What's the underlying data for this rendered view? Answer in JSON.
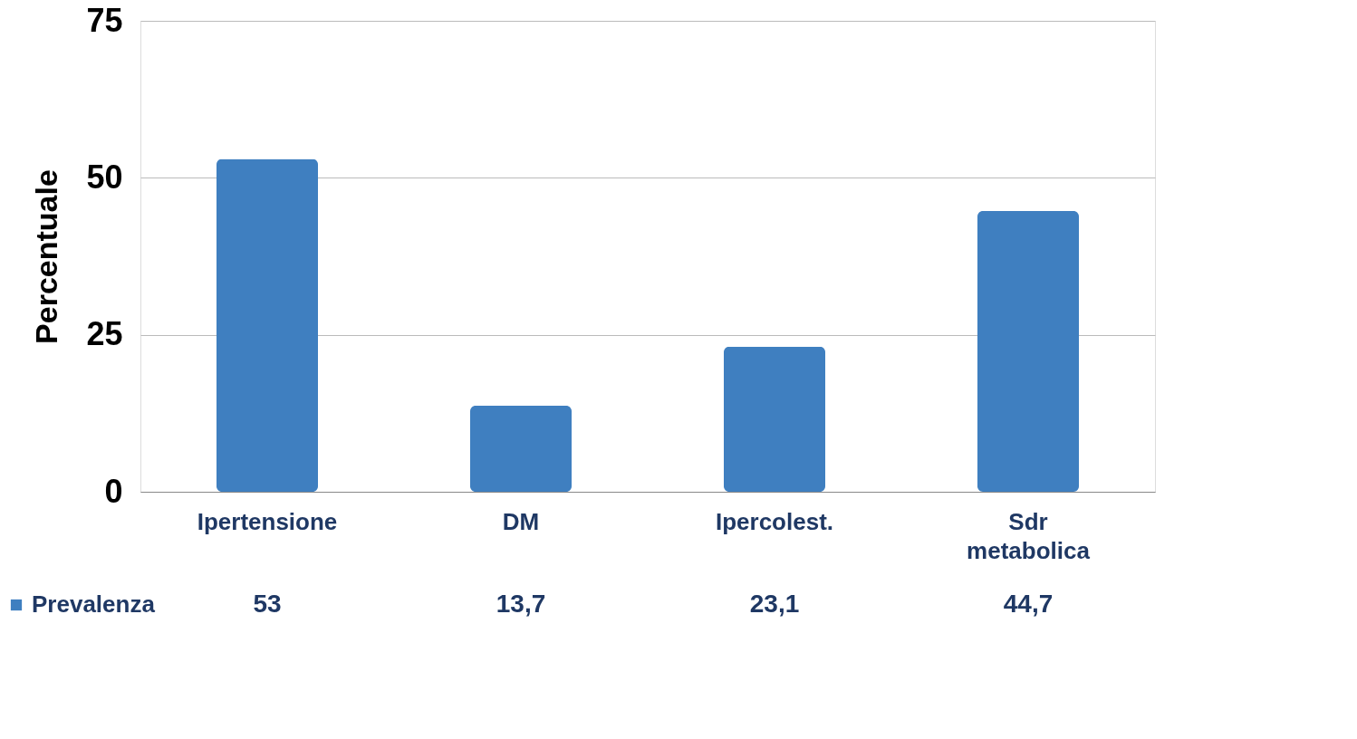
{
  "chart_data": {
    "type": "bar",
    "ylabel": "Percentuale",
    "categories": [
      "Ipertensione",
      "DM",
      "Ipercolest.",
      "Sdr metabolica"
    ],
    "series": [
      {
        "name": "Prevalenza",
        "color": "#3f7fc0",
        "values": [
          53,
          13.7,
          23.1,
          44.7
        ],
        "value_labels": [
          "53",
          "13,7",
          "23,1",
          "44,7"
        ]
      }
    ],
    "ylim": [
      0,
      75
    ],
    "yticks": [
      0,
      25,
      50,
      75
    ],
    "grid": "y",
    "legend": "bottom left"
  }
}
